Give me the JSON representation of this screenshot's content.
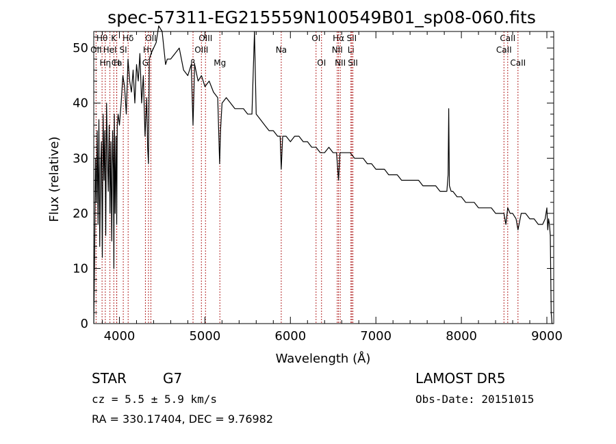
{
  "chart_data": {
    "type": "line",
    "title": "spec-57311-EG215559N100549B01_sp08-060.fits",
    "xlabel": "Wavelength (Å)",
    "ylabel": "Flux (relative)",
    "xlim": [
      3700,
      9080
    ],
    "ylim": [
      0,
      53
    ],
    "xticks": [
      4000,
      5000,
      6000,
      7000,
      8000,
      9000
    ],
    "yticks": [
      0,
      10,
      20,
      30,
      40,
      50
    ],
    "grid": false,
    "series": [
      {
        "x": [
          3700,
          3710,
          3720,
          3730,
          3740,
          3750,
          3760,
          3770,
          3780,
          3790,
          3800,
          3810,
          3820,
          3830,
          3840,
          3850,
          3860,
          3870,
          3880,
          3890,
          3900,
          3910,
          3920,
          3930,
          3935,
          3940,
          3950,
          3960,
          3968,
          3975,
          3985,
          4000,
          4020,
          4040,
          4060,
          4080,
          4100,
          4120,
          4140,
          4160,
          4180,
          4200,
          4220,
          4240,
          4260,
          4280,
          4300,
          4320,
          4330,
          4340,
          4350,
          4370,
          4400,
          4430,
          4460,
          4500,
          4520,
          4540,
          4560,
          4600,
          4650,
          4700,
          4750,
          4800,
          4840,
          4861,
          4880,
          4920,
          4960,
          5000,
          5050,
          5100,
          5150,
          5172,
          5183,
          5200,
          5250,
          5300,
          5350,
          5400,
          5450,
          5500,
          5550,
          5580,
          5600,
          5650,
          5700,
          5750,
          5800,
          5850,
          5880,
          5893,
          5910,
          5950,
          6000,
          6050,
          6100,
          6150,
          6200,
          6250,
          6300,
          6350,
          6400,
          6450,
          6500,
          6540,
          6563,
          6580,
          6620,
          6650,
          6700,
          6750,
          6800,
          6850,
          6900,
          6950,
          7000,
          7050,
          7100,
          7150,
          7200,
          7250,
          7300,
          7350,
          7400,
          7450,
          7500,
          7550,
          7600,
          7650,
          7700,
          7750,
          7800,
          7830,
          7845,
          7852,
          7860,
          7880,
          7900,
          7950,
          8000,
          8050,
          8100,
          8150,
          8200,
          8250,
          8300,
          8350,
          8400,
          8450,
          8498,
          8520,
          8542,
          8570,
          8600,
          8640,
          8662,
          8700,
          8750,
          8800,
          8850,
          8900,
          8950,
          8980,
          9000,
          9010,
          9020,
          9030,
          9040,
          9050,
          9060,
          9070
        ],
        "y": [
          0,
          12,
          30,
          22,
          35,
          18,
          37,
          14,
          28,
          33,
          12,
          38,
          26,
          35,
          16,
          40,
          30,
          24,
          36,
          20,
          33,
          15,
          35,
          28,
          10,
          38,
          20,
          34,
          18,
          36,
          38,
          36,
          40,
          45,
          43,
          38,
          48,
          44,
          42,
          46,
          40,
          47,
          44,
          49,
          40,
          45,
          34,
          41,
          32,
          29,
          48,
          49,
          50,
          51,
          54,
          53,
          50,
          47,
          48,
          48,
          49,
          50,
          46,
          45,
          47,
          36,
          47,
          44,
          45,
          43,
          44,
          42,
          41,
          29,
          35,
          40,
          41,
          40,
          39,
          39,
          39,
          38,
          38,
          53,
          38,
          37,
          36,
          35,
          35,
          34,
          34,
          28,
          34,
          34,
          33,
          34,
          34,
          33,
          33,
          32,
          32,
          31,
          31,
          32,
          31,
          31,
          26,
          31,
          31,
          31,
          31,
          30,
          30,
          30,
          29,
          29,
          28,
          28,
          28,
          27,
          27,
          27,
          26,
          26,
          26,
          26,
          26,
          25,
          25,
          25,
          25,
          24,
          24,
          24,
          27,
          39,
          25,
          24,
          24,
          23,
          23,
          22,
          22,
          22,
          21,
          21,
          21,
          21,
          20,
          20,
          20,
          18,
          21,
          20,
          20,
          19,
          17,
          20,
          20,
          19,
          19,
          18,
          18,
          19,
          21,
          17,
          19,
          18,
          16,
          2,
          0,
          0
        ]
      }
    ],
    "lines": [
      {
        "label": "Hθ",
        "x": 3797,
        "row": 0
      },
      {
        "label": "K",
        "x": 3934,
        "row": 0
      },
      {
        "label": "Hδ",
        "x": 4102,
        "row": 0
      },
      {
        "label": "OII",
        "x": 3727,
        "row": 1
      },
      {
        "label": "HeI",
        "x": 3889,
        "row": 1
      },
      {
        "label": "SI",
        "x": 4045,
        "row": 1
      },
      {
        "label": "OII",
        "x": 4368,
        "row": 0
      },
      {
        "label": "Hγ",
        "x": 4340,
        "row": 1
      },
      {
        "label": "Ca",
        "x": 3969,
        "row": 2
      },
      {
        "label": "Hη",
        "x": 3835,
        "row": 2
      },
      {
        "label": "H",
        "x": 3968,
        "row": 2
      },
      {
        "label": "G",
        "x": 4304,
        "row": 2
      },
      {
        "label": "OIII",
        "x": 5007,
        "row": 0
      },
      {
        "label": "OIII",
        "x": 4959,
        "row": 1
      },
      {
        "label": "β",
        "x": 4861,
        "row": 2
      },
      {
        "label": "Mg",
        "x": 5175,
        "row": 2
      },
      {
        "label": "Na",
        "x": 5893,
        "row": 1
      },
      {
        "label": "OI",
        "x": 6300,
        "row": 0
      },
      {
        "label": "OI",
        "x": 6364,
        "row": 2
      },
      {
        "label": "Hα",
        "x": 6563,
        "row": 0
      },
      {
        "label": "NII",
        "x": 6548,
        "row": 1
      },
      {
        "label": "NII",
        "x": 6583,
        "row": 2
      },
      {
        "label": "SII",
        "x": 6717,
        "row": 0
      },
      {
        "label": "Li",
        "x": 6708,
        "row": 1
      },
      {
        "label": "SII",
        "x": 6731,
        "row": 2
      },
      {
        "label": "CaII",
        "x": 8542,
        "row": 0
      },
      {
        "label": "CaII",
        "x": 8498,
        "row": 1
      },
      {
        "label": "CaII",
        "x": 8662,
        "row": 2
      }
    ]
  },
  "info": {
    "class_label": "STAR",
    "subclass": "G7",
    "cz_text": "cz = 5.5 ± 5.9 km/s",
    "radec_text": "RA = 330.17404, DEC =   9.76982",
    "survey": "LAMOST DR5",
    "obs_date": "Obs-Date: 20151015"
  },
  "colors": {
    "axes": "#000000",
    "spectrum": "#000000",
    "line_markers": "#b22222"
  }
}
